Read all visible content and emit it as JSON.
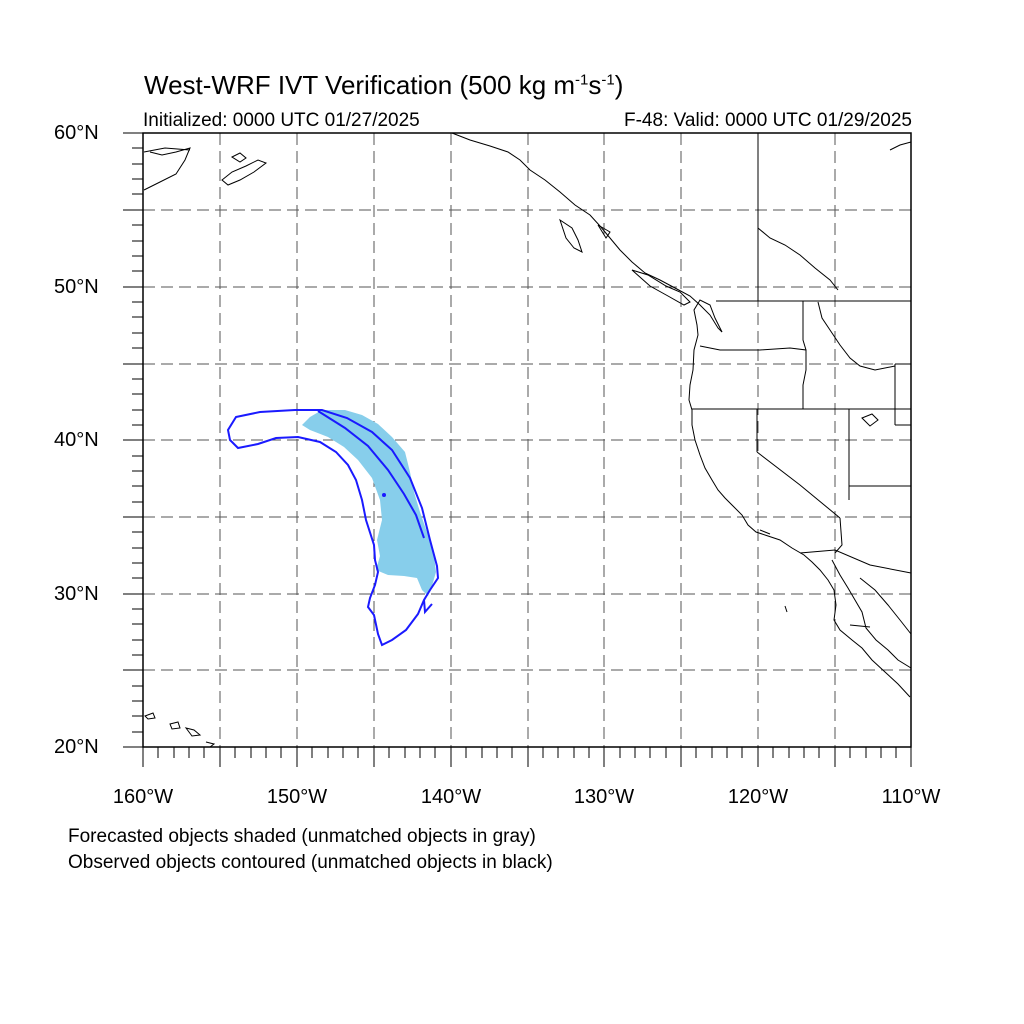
{
  "title_main": "West-WRF IVT Verification (500 kg m",
  "title_sup1": "-1",
  "title_mid": "s",
  "title_sup2": "-1",
  "title_end": ")",
  "subtitle_left": "Initialized: 0000 UTC 01/27/2025",
  "subtitle_right": "F-48: Valid: 0000 UTC 01/29/2025",
  "lat_labels": [
    "60°N",
    "50°N",
    "40°N",
    "30°N",
    "20°N"
  ],
  "lon_labels": [
    "160°W",
    "150°W",
    "140°W",
    "130°W",
    "120°W",
    "110°W"
  ],
  "footnotes": [
    "Forecasted objects shaded (unmatched objects in gray)",
    "Observed objects contoured (unmatched objects in black)"
  ],
  "map_extent": {
    "lon_min": -160,
    "lon_max": -110,
    "lat_min": 20,
    "lat_max": 60
  },
  "colors": {
    "forecast_fill": "#87ceeb",
    "observed_contour": "#0000ff",
    "grid": "#555555",
    "coastline": "#000000"
  }
}
